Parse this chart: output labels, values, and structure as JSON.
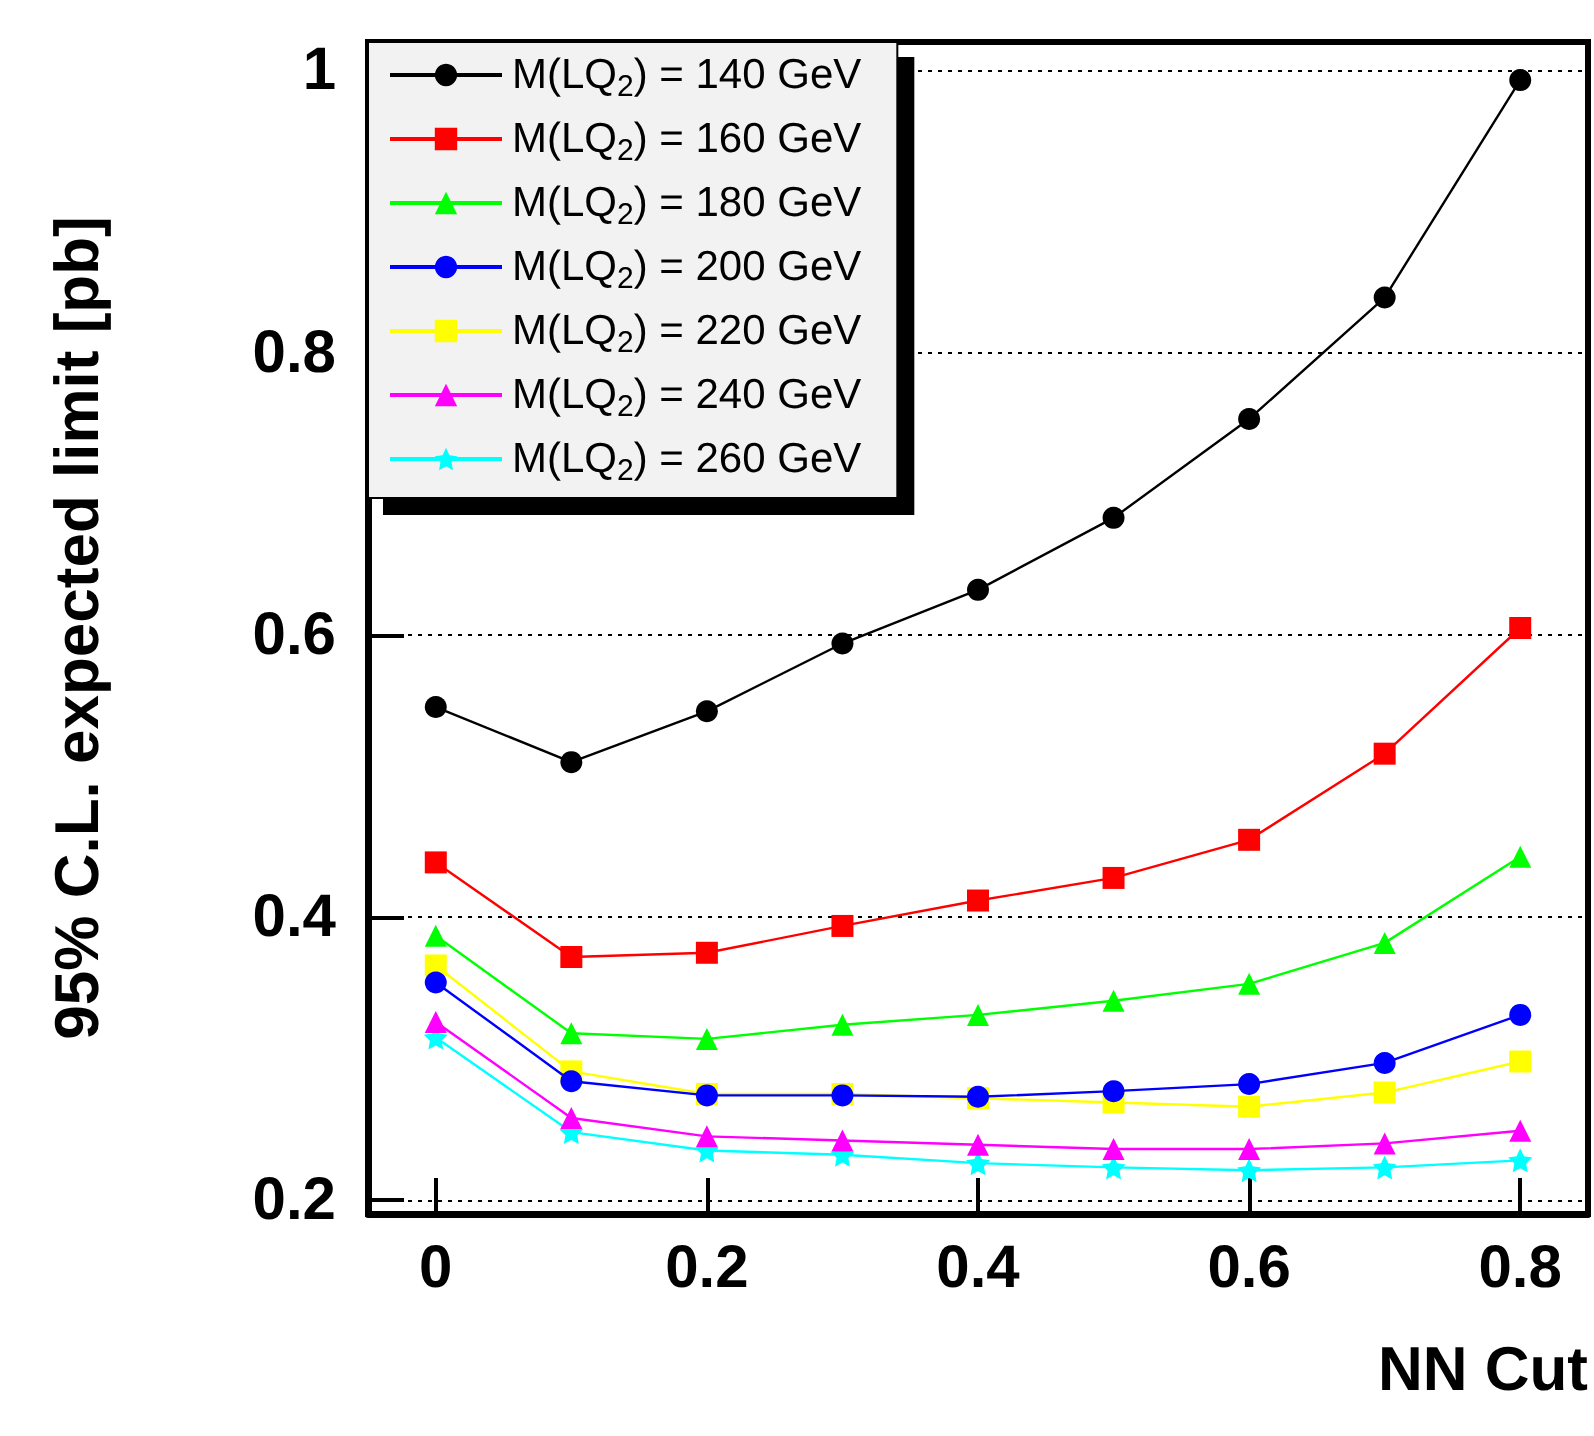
{
  "chart_data": {
    "type": "line",
    "xlabel": "NN Cut",
    "ylabel": "95% C.L. expected limit [pb]",
    "x": [
      0,
      0.1,
      0.2,
      0.3,
      0.4,
      0.5,
      0.6,
      0.7,
      0.8
    ],
    "xlim": [
      -0.05,
      0.85
    ],
    "xticks": [
      0,
      0.2,
      0.4,
      0.6,
      0.8
    ],
    "ylim": [
      0.19,
      1.02
    ],
    "yticks": [
      0.2,
      0.4,
      0.6,
      0.8,
      1
    ],
    "grid": "y",
    "legend": "top left",
    "series": [
      {
        "name": "M(LQ$_{2}$) = 140 GeV",
        "color": "#000000",
        "marker": "circle",
        "values": [
          0.549,
          0.51,
          0.546,
          0.594,
          0.632,
          0.683,
          0.753,
          0.839,
          0.993
        ]
      },
      {
        "name": "M(LQ$_{2}$) = 160 GeV",
        "color": "#ff0000",
        "marker": "square",
        "values": [
          0.439,
          0.372,
          0.375,
          0.394,
          0.412,
          0.428,
          0.455,
          0.516,
          0.605
        ]
      },
      {
        "name": "M(LQ$_{2}$) = 180 GeV",
        "color": "#00ff00",
        "marker": "triangle",
        "values": [
          0.387,
          0.318,
          0.314,
          0.324,
          0.331,
          0.341,
          0.353,
          0.382,
          0.443
        ]
      },
      {
        "name": "M(LQ$_{2}$) = 200 GeV",
        "color": "#0000ff",
        "marker": "circle",
        "values": [
          0.354,
          0.284,
          0.274,
          0.274,
          0.273,
          0.277,
          0.282,
          0.297,
          0.331
        ]
      },
      {
        "name": "M(LQ$_{2}$) = 220 GeV",
        "color": "#ffff00",
        "marker": "square",
        "values": [
          0.366,
          0.291,
          0.275,
          0.275,
          0.272,
          0.269,
          0.266,
          0.276,
          0.298
        ]
      },
      {
        "name": "M(LQ$_{2}$) = 240 GeV",
        "color": "#ff00ff",
        "marker": "triangle",
        "values": [
          0.326,
          0.258,
          0.245,
          0.242,
          0.239,
          0.236,
          0.236,
          0.24,
          0.249
        ]
      },
      {
        "name": "M(LQ$_{2}$) = 260 GeV",
        "color": "#00ffff",
        "marker": "star",
        "values": [
          0.315,
          0.248,
          0.235,
          0.232,
          0.226,
          0.223,
          0.221,
          0.223,
          0.228
        ]
      }
    ]
  }
}
